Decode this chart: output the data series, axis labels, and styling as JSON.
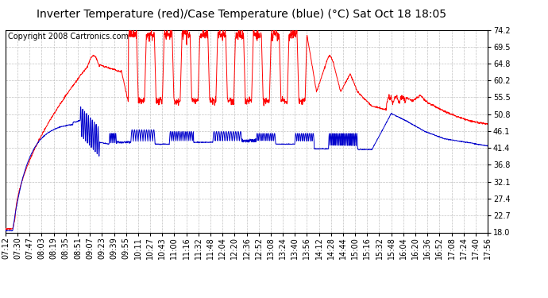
{
  "title": "Inverter Temperature (red)/Case Temperature (blue) (°C) Sat Oct 18 18:05",
  "copyright": "Copyright 2008 Cartronics.com",
  "yticks": [
    18.0,
    22.7,
    27.4,
    32.1,
    36.8,
    41.4,
    46.1,
    50.8,
    55.5,
    60.2,
    64.8,
    69.5,
    74.2
  ],
  "ymin": 18.0,
  "ymax": 74.2,
  "bg_color": "#ffffff",
  "plot_bg_color": "#ffffff",
  "grid_color": "#bbbbbb",
  "red_color": "#ff0000",
  "blue_color": "#0000cc",
  "title_fontsize": 10,
  "copyright_fontsize": 7,
  "tick_fontsize": 7,
  "xtick_labels": [
    "07:12",
    "07:30",
    "07:47",
    "08:03",
    "08:19",
    "08:35",
    "08:51",
    "09:07",
    "09:23",
    "09:39",
    "09:55",
    "10:11",
    "10:27",
    "10:43",
    "11:00",
    "11:16",
    "11:32",
    "11:48",
    "12:04",
    "12:20",
    "12:36",
    "12:52",
    "13:08",
    "13:24",
    "13:40",
    "13:56",
    "14:12",
    "14:28",
    "14:44",
    "15:00",
    "15:16",
    "15:32",
    "15:48",
    "16:04",
    "16:20",
    "16:36",
    "16:52",
    "17:08",
    "17:24",
    "17:40",
    "17:56"
  ],
  "n_xticks": 41
}
